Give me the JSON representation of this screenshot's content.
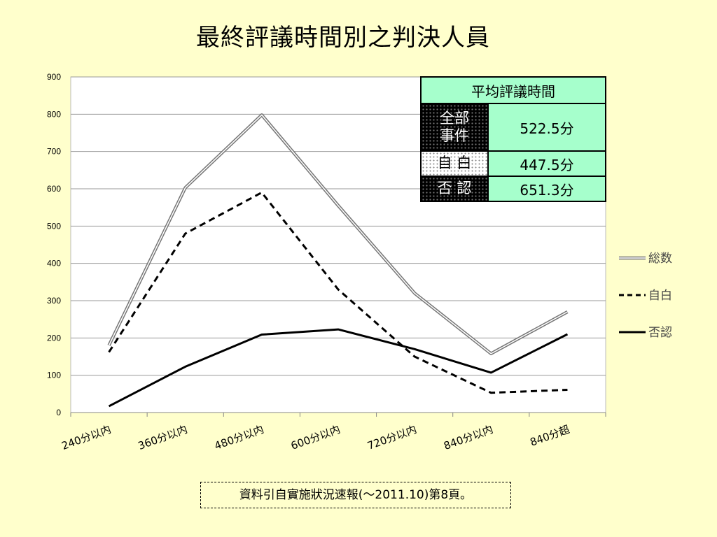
{
  "title": "最終評議時間別之判決人員",
  "chart_data": {
    "type": "line",
    "categories": [
      "240分以内",
      "360分以内",
      "480分以内",
      "600分以内",
      "720分以内",
      "840分以内",
      "840分超"
    ],
    "series": [
      {
        "name": "総数",
        "values": [
          180,
          603,
          798,
          555,
          320,
          158,
          270
        ],
        "style": "double",
        "color": "#777777"
      },
      {
        "name": "自白",
        "values": [
          162,
          480,
          590,
          330,
          150,
          53,
          61
        ],
        "style": "dashed",
        "color": "#000000"
      },
      {
        "name": "否認",
        "values": [
          17,
          123,
          209,
          223,
          170,
          107,
          210
        ],
        "style": "solid",
        "color": "#000000"
      }
    ],
    "y_ticks": [
      0,
      100,
      200,
      300,
      400,
      500,
      600,
      700,
      800,
      900
    ],
    "ylim": [
      0,
      900
    ],
    "grid": true,
    "legend_position": "right"
  },
  "inset_table": {
    "header": "平均評議時間",
    "rows": [
      {
        "label_line1": "全部",
        "label_line2": "事件",
        "value": "522.5分"
      },
      {
        "label": "自 白",
        "value": "447.5分"
      },
      {
        "label": "否 認",
        "value": "651.3分"
      }
    ]
  },
  "source_note": "資料引自實施狀況速報(～2011.10)第8頁。",
  "colors": {
    "background": "#ffffcc",
    "plot_background": "#ffffff",
    "table_accent": "#a6ffcc"
  }
}
